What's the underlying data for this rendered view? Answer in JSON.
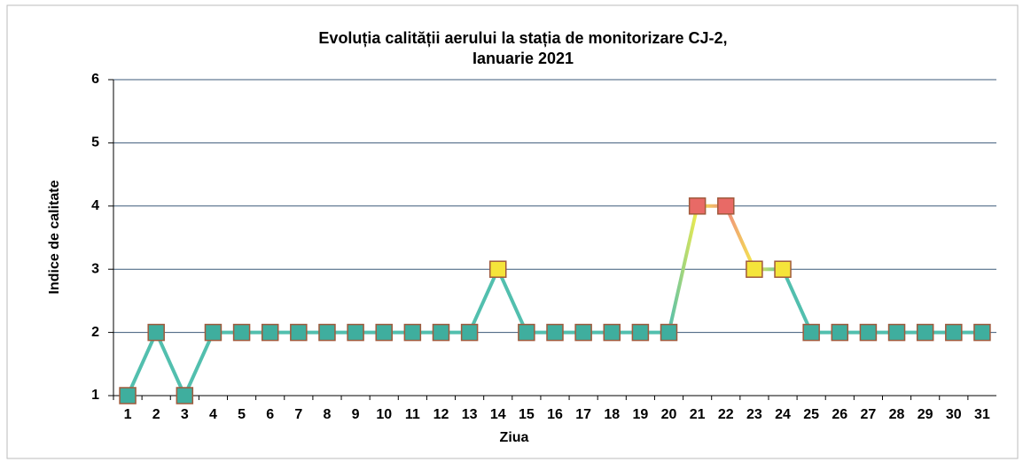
{
  "chart_data": {
    "type": "line",
    "title": "Evoluția calității aerului la stația de monitorizare CJ-2,",
    "subtitle": "Ianuarie 2021",
    "y_label": "Indice de calitate",
    "x_label": "Ziua",
    "categories": [
      "1",
      "2",
      "3",
      "4",
      "5",
      "6",
      "7",
      "8",
      "9",
      "10",
      "11",
      "12",
      "13",
      "14",
      "15",
      "16",
      "17",
      "18",
      "19",
      "20",
      "21",
      "22",
      "23",
      "24",
      "25",
      "26",
      "27",
      "28",
      "29",
      "30",
      "31"
    ],
    "values": [
      1,
      2,
      1,
      2,
      2,
      2,
      2,
      2,
      2,
      2,
      2,
      2,
      2,
      3,
      2,
      2,
      2,
      2,
      2,
      2,
      4,
      4,
      3,
      3,
      2,
      2,
      2,
      2,
      2,
      2,
      2
    ],
    "point_colors": [
      "#3fae9e",
      "#3fae9e",
      "#3fae9e",
      "#3fae9e",
      "#3fae9e",
      "#3fae9e",
      "#3fae9e",
      "#3fae9e",
      "#3fae9e",
      "#3fae9e",
      "#3fae9e",
      "#3fae9e",
      "#3fae9e",
      "#f5e43a",
      "#3fae9e",
      "#3fae9e",
      "#3fae9e",
      "#3fae9e",
      "#3fae9e",
      "#3fae9e",
      "#e86a66",
      "#e86a66",
      "#f5e43a",
      "#f5e43a",
      "#3fae9e",
      "#3fae9e",
      "#3fae9e",
      "#3fae9e",
      "#3fae9e",
      "#3fae9e",
      "#3fae9e"
    ],
    "line_colors": [
      "#52bfae",
      "#52bfae",
      "#52bfae",
      "#52bfae",
      "#52bfae",
      "#52bfae",
      "#52bfae",
      "#52bfae",
      "#52bfae",
      "#52bfae",
      "#52bfae",
      "#52bfae",
      "#52bfae",
      "#52bfae",
      "#52bfae",
      "#52bfae",
      "#52bfae",
      "#52bfae",
      "#52bfae",
      "#52bfae",
      "#f3ec4c",
      "#f08a80",
      "#f3ec4c",
      "#52bfae",
      "#52bfae",
      "#52bfae",
      "#52bfae",
      "#52bfae",
      "#52bfae",
      "#52bfae",
      "#52bfae"
    ],
    "ylim": [
      1,
      6
    ],
    "yticks": [
      1,
      2,
      3,
      4,
      5,
      6
    ],
    "grid": true
  }
}
